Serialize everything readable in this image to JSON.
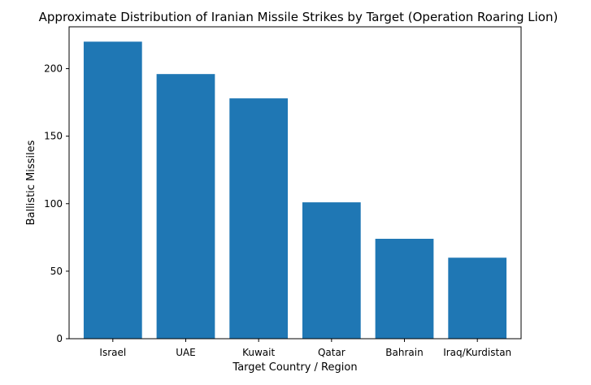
{
  "chart_data": {
    "type": "bar",
    "title": "Approximate Distribution of Iranian Missile Strikes by Target (Operation Roaring Lion)",
    "xlabel": "Target Country / Region",
    "ylabel": "Ballistic Missiles",
    "categories": [
      "Israel",
      "UAE",
      "Kuwait",
      "Qatar",
      "Bahrain",
      "Iraq/Kurdistan"
    ],
    "values": [
      220,
      196,
      178,
      101,
      74,
      60
    ],
    "ylim": [
      0,
      231
    ],
    "yticks": [
      0,
      50,
      100,
      150,
      200
    ],
    "grid": false,
    "legend": "none",
    "bar_color": "#1f77b4"
  }
}
